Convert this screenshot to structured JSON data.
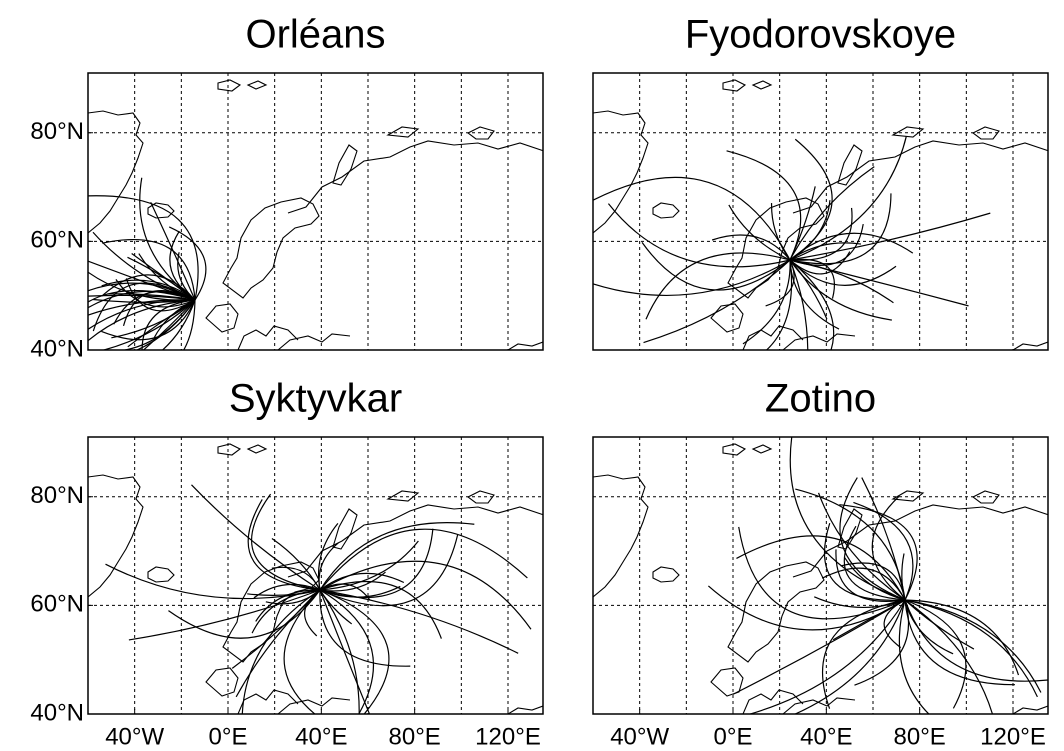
{
  "chart_data": [
    {
      "type": "map",
      "title": "Orléans",
      "xlim": [
        -60,
        135
      ],
      "ylim": [
        40,
        91
      ],
      "xgrid": [
        -40,
        -20,
        0,
        20,
        40,
        60,
        80,
        100,
        120
      ],
      "ygrid": [
        60,
        80
      ],
      "yticks": [
        {
          "value": 80,
          "label": "80°N"
        },
        {
          "value": 60,
          "label": "60°N"
        },
        {
          "value": 40,
          "label": "40°N"
        }
      ]
    },
    {
      "type": "map",
      "title": "Fyodorovskoye",
      "xlim": [
        -60,
        135
      ],
      "ylim": [
        40,
        91
      ],
      "xgrid": [
        -40,
        -20,
        0,
        20,
        40,
        60,
        80,
        100,
        120
      ],
      "ygrid": [
        60,
        80
      ]
    },
    {
      "type": "map",
      "title": "Syktyvkar",
      "xlim": [
        -60,
        135
      ],
      "ylim": [
        40,
        91
      ],
      "xgrid": [
        -40,
        -20,
        0,
        20,
        40,
        60,
        80,
        100,
        120
      ],
      "ygrid": [
        60,
        80
      ],
      "yticks": [
        {
          "value": 80,
          "label": "80°N"
        },
        {
          "value": 60,
          "label": "60°N"
        },
        {
          "value": 40,
          "label": "40°N"
        }
      ],
      "xticks": [
        {
          "value": -40,
          "label": "40°W"
        },
        {
          "value": 0,
          "label": "0°E"
        },
        {
          "value": 40,
          "label": "40°E"
        },
        {
          "value": 80,
          "label": "80°E"
        },
        {
          "value": 120,
          "label": "120°E"
        }
      ]
    },
    {
      "type": "map",
      "title": "Zotino",
      "xlim": [
        -60,
        135
      ],
      "ylim": [
        40,
        91
      ],
      "xgrid": [
        -40,
        -20,
        0,
        20,
        40,
        60,
        80,
        100,
        120
      ],
      "ygrid": [
        60,
        80
      ],
      "xticks": [
        {
          "value": -40,
          "label": "40°W"
        },
        {
          "value": 0,
          "label": "0°E"
        },
        {
          "value": 40,
          "label": "40°E"
        },
        {
          "value": 80,
          "label": "80°E"
        },
        {
          "value": 120,
          "label": "120°E"
        }
      ]
    }
  ]
}
